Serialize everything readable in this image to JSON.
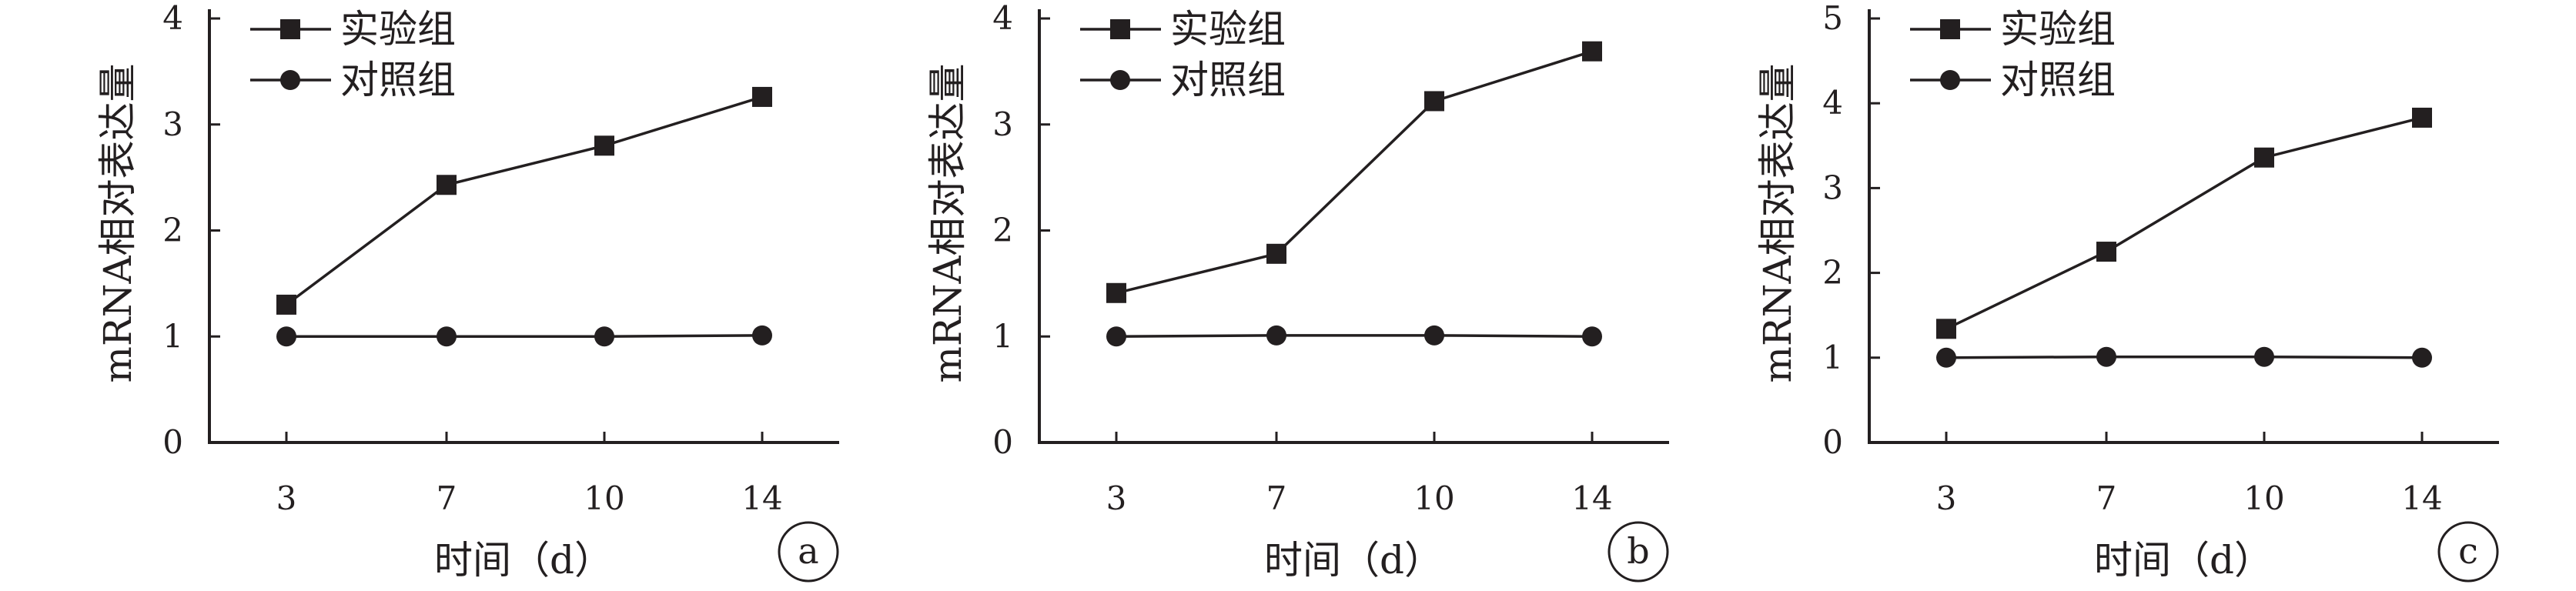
{
  "colors": {
    "ink": "#231f20",
    "background": "#ffffff"
  },
  "chart_data": [
    {
      "type": "line",
      "panel_label": "a",
      "xlabel": "时间（d）",
      "ylabel": "mRNA相对表达量",
      "categories": [
        "3",
        "7",
        "10",
        "14"
      ],
      "yticks": [
        "0",
        "1",
        "2",
        "3",
        "4"
      ],
      "ylim": [
        0,
        4
      ],
      "legend_position": "top-left",
      "grid": false,
      "series": [
        {
          "name": "实验组",
          "marker": "square-icon",
          "values": [
            1.3,
            2.43,
            2.8,
            3.26
          ]
        },
        {
          "name": "对照组",
          "marker": "circle-icon",
          "values": [
            1.0,
            1.0,
            1.0,
            1.01
          ]
        }
      ]
    },
    {
      "type": "line",
      "panel_label": "b",
      "xlabel": "时间（d）",
      "ylabel": "mRNA相对表达量",
      "categories": [
        "3",
        "7",
        "10",
        "14"
      ],
      "yticks": [
        "0",
        "1",
        "2",
        "3",
        "4"
      ],
      "ylim": [
        0,
        4
      ],
      "legend_position": "top-left",
      "grid": false,
      "series": [
        {
          "name": "实验组",
          "marker": "square-icon",
          "values": [
            1.41,
            1.78,
            3.22,
            3.69
          ]
        },
        {
          "name": "对照组",
          "marker": "circle-icon",
          "values": [
            1.0,
            1.01,
            1.01,
            1.0
          ]
        }
      ]
    },
    {
      "type": "line",
      "panel_label": "c",
      "xlabel": "时间（d）",
      "ylabel": "mRNA相对表达量",
      "categories": [
        "3",
        "7",
        "10",
        "14"
      ],
      "yticks": [
        "0",
        "1",
        "2",
        "3",
        "4",
        "5"
      ],
      "ylim": [
        0,
        5
      ],
      "legend_position": "top-left",
      "grid": false,
      "series": [
        {
          "name": "实验组",
          "marker": "square-icon",
          "values": [
            1.34,
            2.25,
            3.36,
            3.83
          ]
        },
        {
          "name": "对照组",
          "marker": "circle-icon",
          "values": [
            1.0,
            1.01,
            1.01,
            1.0
          ]
        }
      ]
    }
  ]
}
